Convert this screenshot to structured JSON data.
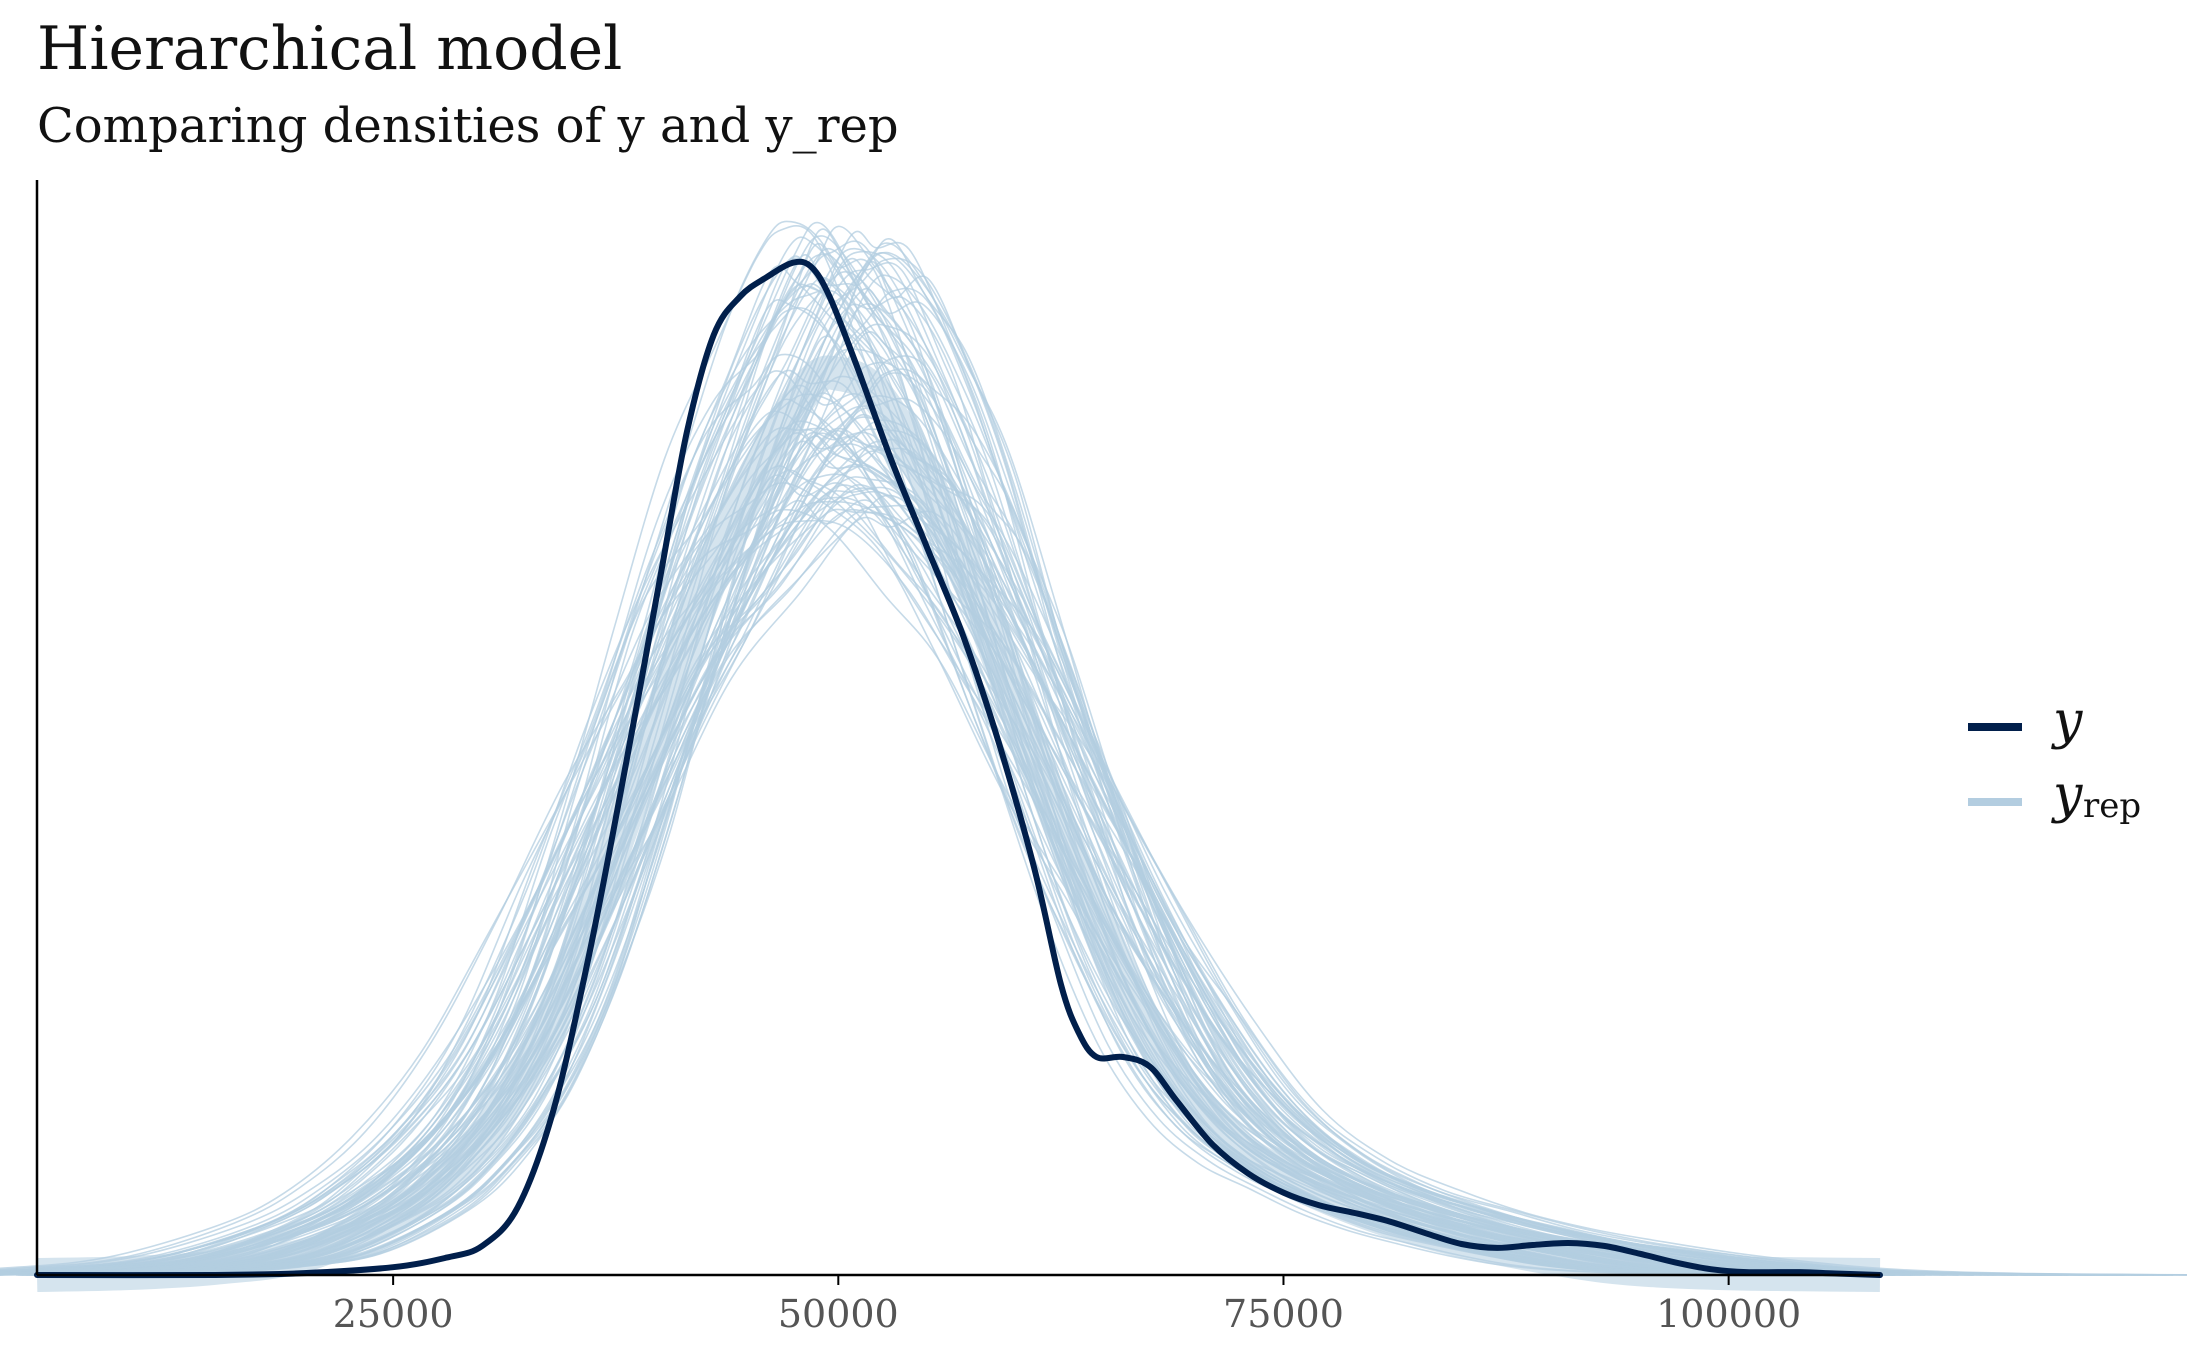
{
  "header": {
    "title": "Hierarchical model",
    "subtitle": "Comparing densities of y and y_rep"
  },
  "legend": {
    "items": [
      {
        "label": "y",
        "subscript": "",
        "color": "#011f4b"
      },
      {
        "label": "y",
        "subscript": "rep",
        "color": "#b3cde0"
      }
    ]
  },
  "chart_data": {
    "type": "line",
    "title": "Hierarchical model",
    "subtitle": "Comparing densities of y and y_rep",
    "xlabel": "",
    "ylabel": "",
    "xlim": [
      5000,
      108500
    ],
    "ylim": [
      0,
      1.13
    ],
    "x_ticks": [
      25000,
      50000,
      75000,
      100000
    ],
    "x_tick_labels": [
      "25000",
      "50000",
      "75000",
      "100000"
    ],
    "y_axis_labels_shown": false,
    "grid": false,
    "legend_position": "right",
    "series": [
      {
        "name": "y",
        "color": "#011f4b",
        "points": [
          [
            5000,
            0.0
          ],
          [
            15000,
            0.0
          ],
          [
            20000,
            0.002
          ],
          [
            25000,
            0.008
          ],
          [
            28000,
            0.018
          ],
          [
            30000,
            0.03
          ],
          [
            32000,
            0.07
          ],
          [
            34000,
            0.17
          ],
          [
            36000,
            0.33
          ],
          [
            38000,
            0.52
          ],
          [
            40000,
            0.72
          ],
          [
            41500,
            0.87
          ],
          [
            43000,
            0.97
          ],
          [
            44500,
            1.01
          ],
          [
            46000,
            1.03
          ],
          [
            47500,
            1.045
          ],
          [
            48500,
            1.04
          ],
          [
            49500,
            1.01
          ],
          [
            51000,
            0.94
          ],
          [
            53000,
            0.84
          ],
          [
            55000,
            0.75
          ],
          [
            57000,
            0.66
          ],
          [
            59000,
            0.55
          ],
          [
            61000,
            0.42
          ],
          [
            62500,
            0.3
          ],
          [
            63500,
            0.25
          ],
          [
            64500,
            0.225
          ],
          [
            66000,
            0.225
          ],
          [
            67500,
            0.215
          ],
          [
            69000,
            0.18
          ],
          [
            71000,
            0.135
          ],
          [
            73000,
            0.105
          ],
          [
            75000,
            0.085
          ],
          [
            77000,
            0.072
          ],
          [
            79000,
            0.064
          ],
          [
            81000,
            0.055
          ],
          [
            83000,
            0.043
          ],
          [
            85000,
            0.032
          ],
          [
            87000,
            0.028
          ],
          [
            89000,
            0.031
          ],
          [
            91000,
            0.033
          ],
          [
            93000,
            0.03
          ],
          [
            95000,
            0.022
          ],
          [
            97000,
            0.013
          ],
          [
            99000,
            0.006
          ],
          [
            101000,
            0.003
          ],
          [
            104000,
            0.003
          ],
          [
            106000,
            0.0015
          ],
          [
            108500,
            0.0
          ]
        ]
      },
      {
        "name": "y_rep",
        "color": "#b3cde0",
        "draws": 100,
        "points": [
          [
            5000,
            0.0
          ],
          [
            10000,
            0.002
          ],
          [
            15000,
            0.008
          ],
          [
            20000,
            0.022
          ],
          [
            25000,
            0.065
          ],
          [
            28000,
            0.11
          ],
          [
            31000,
            0.18
          ],
          [
            34000,
            0.29
          ],
          [
            37000,
            0.45
          ],
          [
            40000,
            0.62
          ],
          [
            43000,
            0.78
          ],
          [
            46000,
            0.91
          ],
          [
            48500,
            0.99
          ],
          [
            50000,
            1.0
          ],
          [
            52000,
            0.98
          ],
          [
            54500,
            0.9
          ],
          [
            57000,
            0.79
          ],
          [
            60000,
            0.63
          ],
          [
            63000,
            0.47
          ],
          [
            66000,
            0.33
          ],
          [
            69000,
            0.22
          ],
          [
            72000,
            0.15
          ],
          [
            75000,
            0.11
          ],
          [
            78000,
            0.082
          ],
          [
            81000,
            0.06
          ],
          [
            84000,
            0.043
          ],
          [
            87000,
            0.03
          ],
          [
            90000,
            0.019
          ],
          [
            93000,
            0.01
          ],
          [
            96000,
            0.005
          ],
          [
            100000,
            0.002
          ],
          [
            104000,
            0.0008
          ],
          [
            108500,
            0.0
          ]
        ]
      }
    ]
  }
}
